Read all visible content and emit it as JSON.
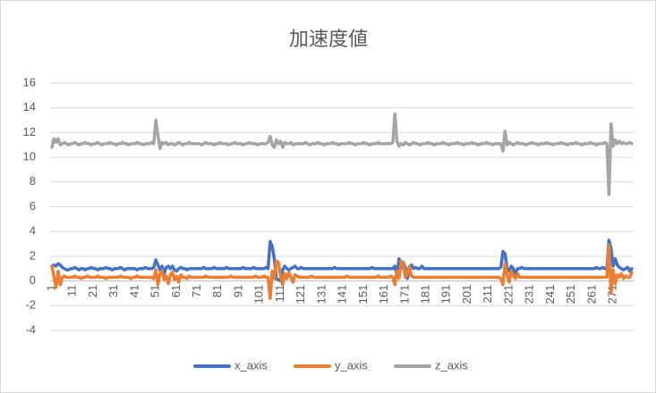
{
  "chart_data": {
    "type": "line",
    "title": "加速度値",
    "categories": [
      1,
      null,
      null,
      null,
      null,
      null,
      null,
      null,
      null,
      null,
      11,
      null,
      null,
      null,
      null,
      null,
      null,
      null,
      null,
      null,
      21,
      null,
      null,
      null,
      null,
      null,
      null,
      null,
      null,
      null,
      31,
      null,
      null,
      null,
      null,
      null,
      null,
      null,
      null,
      null,
      41,
      null,
      null,
      null,
      null,
      null,
      null,
      null,
      null,
      null,
      51,
      null,
      null,
      null,
      null,
      null,
      null,
      null,
      null,
      null,
      61,
      null,
      null,
      null,
      null,
      null,
      null,
      null,
      null,
      null,
      71,
      null,
      null,
      null,
      null,
      null,
      null,
      null,
      null,
      null,
      81,
      null,
      null,
      null,
      null,
      null,
      null,
      null,
      null,
      null,
      91,
      null,
      null,
      null,
      null,
      null,
      null,
      null,
      null,
      null,
      101,
      null,
      null,
      null,
      null,
      null,
      null,
      null,
      null,
      null,
      111,
      null,
      null,
      null,
      null,
      null,
      null,
      null,
      null,
      null,
      121,
      null,
      null,
      null,
      null,
      null,
      null,
      null,
      null,
      null,
      131,
      null,
      null,
      null,
      null,
      null,
      null,
      null,
      null,
      null,
      141,
      null,
      null,
      null,
      null,
      null,
      null,
      null,
      null,
      null,
      151,
      null,
      null,
      null,
      null,
      null,
      null,
      null,
      null,
      null,
      161,
      null,
      null,
      null,
      null,
      null,
      null,
      null,
      null,
      null,
      171,
      null,
      null,
      null,
      null,
      null,
      null,
      null,
      null,
      null,
      181,
      null,
      null,
      null,
      null,
      null,
      null,
      null,
      null,
      null,
      191,
      null,
      null,
      null,
      null,
      null,
      null,
      null,
      null,
      null,
      201,
      null,
      null,
      null,
      null,
      null,
      null,
      null,
      null,
      null,
      211,
      null,
      null,
      null,
      null,
      null,
      null,
      null,
      null,
      null,
      221,
      null,
      null,
      null,
      null,
      null,
      null,
      null,
      null,
      null,
      231,
      null,
      null,
      null,
      null,
      null,
      null,
      null,
      null,
      null,
      241,
      null,
      null,
      null,
      null,
      null,
      null,
      null,
      null,
      null,
      251,
      null,
      null,
      null,
      null,
      null,
      null,
      null,
      null,
      null,
      261,
      null,
      null,
      null,
      null,
      null,
      null,
      null,
      null,
      null,
      271,
      null,
      null,
      null,
      null,
      null,
      null,
      null,
      null,
      null
    ],
    "series": [
      {
        "name": "x_axis",
        "color": "#4472c4",
        "values": [
          1.2,
          1.3,
          1.2,
          1.4,
          1.3,
          1.1,
          1.0,
          0.9,
          0.9,
          1.0,
          1.0,
          1.1,
          1.0,
          0.9,
          1.0,
          1.0,
          0.9,
          1.0,
          1.0,
          1.1,
          1.0,
          1.0,
          0.9,
          1.0,
          1.0,
          1.0,
          1.1,
          1.0,
          1.0,
          0.9,
          1.0,
          1.0,
          1.0,
          1.1,
          1.0,
          0.9,
          1.0,
          1.0,
          1.0,
          1.0,
          1.0,
          0.9,
          1.0,
          1.0,
          1.0,
          1.1,
          1.0,
          1.0,
          1.0,
          1.1,
          1.7,
          1.3,
          0.9,
          1.2,
          0.6,
          1.1,
          1.2,
          1.0,
          1.2,
          0.9,
          0.8,
          1.0,
          1.1,
          1.0,
          1.0,
          0.9,
          1.0,
          1.0,
          1.0,
          1.0,
          1.0,
          1.0,
          1.0,
          1.1,
          1.0,
          1.0,
          1.0,
          1.0,
          1.1,
          1.0,
          1.0,
          1.0,
          1.0,
          1.0,
          1.1,
          1.0,
          1.0,
          1.0,
          1.0,
          1.0,
          1.0,
          1.0,
          1.1,
          1.0,
          1.0,
          1.0,
          1.0,
          1.1,
          1.0,
          1.0,
          1.0,
          1.0,
          1.0,
          1.1,
          1.0,
          3.2,
          2.8,
          1.8,
          0.2,
          0.1,
          0.0,
          0.9,
          1.2,
          1.0,
          0.9,
          1.0,
          1.1,
          1.2,
          1.0,
          1.0,
          1.1,
          1.0,
          1.0,
          1.0,
          1.0,
          1.0,
          1.0,
          1.0,
          1.0,
          1.0,
          1.0,
          1.0,
          1.0,
          1.0,
          1.0,
          1.0,
          1.1,
          1.0,
          1.0,
          1.0,
          1.0,
          1.0,
          1.0,
          1.0,
          1.0,
          1.0,
          1.0,
          1.0,
          1.0,
          1.0,
          1.0,
          1.0,
          1.0,
          1.0,
          1.1,
          1.0,
          1.0,
          1.0,
          1.0,
          1.0,
          1.0,
          1.0,
          1.0,
          1.0,
          1.0,
          1.2,
          0.5,
          1.8,
          1.0,
          1.5,
          1.1,
          0.2,
          1.0,
          1.3,
          1.0,
          1.1,
          1.0,
          1.0,
          1.2,
          1.0,
          1.0,
          1.0,
          1.0,
          1.0,
          1.0,
          1.0,
          1.0,
          1.0,
          1.0,
          1.0,
          1.0,
          1.0,
          1.0,
          1.0,
          1.0,
          1.0,
          1.0,
          1.0,
          1.0,
          1.0,
          1.0,
          1.0,
          1.0,
          1.0,
          1.0,
          1.0,
          1.0,
          1.0,
          1.0,
          1.0,
          1.0,
          1.0,
          1.0,
          1.0,
          1.0,
          1.0,
          1.1,
          2.4,
          2.2,
          1.0,
          0.8,
          1.2,
          1.0,
          0.6,
          1.0,
          1.0,
          1.1,
          1.0,
          1.0,
          1.0,
          1.0,
          1.0,
          1.0,
          1.0,
          1.0,
          1.0,
          1.0,
          1.0,
          1.0,
          1.0,
          1.0,
          1.0,
          1.0,
          1.0,
          1.0,
          1.0,
          1.0,
          1.0,
          1.0,
          1.0,
          1.0,
          1.0,
          1.0,
          1.0,
          1.0,
          1.0,
          1.0,
          1.0,
          1.0,
          1.0,
          1.0,
          1.0,
          1.1,
          1.0,
          1.0,
          1.1,
          1.0,
          1.0,
          3.3,
          2.6,
          1.2,
          1.8,
          1.3,
          1.1,
          1.0,
          0.9,
          1.0,
          1.1,
          0.8,
          1.0
        ]
      },
      {
        "name": "y_axis",
        "color": "#ed7d31",
        "values": [
          1.2,
          0.3,
          -0.5,
          0.8,
          -0.3,
          0.3,
          0.4,
          0.3,
          0.3,
          0.3,
          0.3,
          0.4,
          0.3,
          0.3,
          0.2,
          0.3,
          0.3,
          0.4,
          0.3,
          0.3,
          0.3,
          0.3,
          0.4,
          0.3,
          0.3,
          0.3,
          0.2,
          0.3,
          0.3,
          0.3,
          0.3,
          0.3,
          0.3,
          0.4,
          0.3,
          0.3,
          0.3,
          0.3,
          0.2,
          0.3,
          0.3,
          0.4,
          0.3,
          0.3,
          0.3,
          0.3,
          0.3,
          0.3,
          0.3,
          0.2,
          0.9,
          -0.3,
          0.6,
          0.8,
          0.1,
          0.4,
          -0.2,
          0.5,
          0.7,
          0.1,
          0.4,
          -0.1,
          0.5,
          0.3,
          0.3,
          0.2,
          0.4,
          0.3,
          0.3,
          0.3,
          0.3,
          0.3,
          0.3,
          0.3,
          0.4,
          0.3,
          0.3,
          0.3,
          0.3,
          0.3,
          0.3,
          0.3,
          0.3,
          0.3,
          0.3,
          0.3,
          0.4,
          0.3,
          0.3,
          0.3,
          0.3,
          0.3,
          0.3,
          0.3,
          0.3,
          0.3,
          0.3,
          0.3,
          0.4,
          0.3,
          0.3,
          0.3,
          0.4,
          0.3,
          0.3,
          -1.4,
          0.8,
          0.2,
          1.6,
          1.5,
          0.4,
          -0.3,
          0.6,
          0.2,
          0.7,
          0.3,
          -0.1,
          0.5,
          0.4,
          0.3,
          0.3,
          0.3,
          0.3,
          0.3,
          0.3,
          0.4,
          0.3,
          0.3,
          0.3,
          0.3,
          0.3,
          0.3,
          0.3,
          0.3,
          0.3,
          0.3,
          0.3,
          0.3,
          0.3,
          0.3,
          0.3,
          0.3,
          0.4,
          0.3,
          0.3,
          0.3,
          0.3,
          0.3,
          0.3,
          0.3,
          0.3,
          0.3,
          0.3,
          0.3,
          0.3,
          0.3,
          0.3,
          0.4,
          0.3,
          0.3,
          0.3,
          0.3,
          0.3,
          0.4,
          0.3,
          -0.3,
          0.8,
          0.2,
          1.6,
          1.5,
          0.3,
          0.6,
          1.2,
          0.4,
          0.3,
          0.3,
          0.3,
          0.3,
          0.3,
          0.3,
          0.3,
          0.3,
          0.3,
          0.3,
          0.3,
          0.3,
          0.3,
          0.3,
          0.3,
          0.3,
          0.3,
          0.3,
          0.3,
          0.3,
          0.3,
          0.3,
          0.3,
          0.3,
          0.3,
          0.3,
          0.3,
          0.3,
          0.3,
          0.3,
          0.3,
          0.3,
          0.3,
          0.3,
          0.3,
          0.3,
          0.3,
          0.3,
          0.3,
          0.3,
          0.3,
          0.3,
          0.2,
          -0.3,
          1.4,
          0.5,
          -0.1,
          0.8,
          0.4,
          0.2,
          0.6,
          0.3,
          0.3,
          0.3,
          0.3,
          0.3,
          0.3,
          0.3,
          0.3,
          0.3,
          0.3,
          0.3,
          0.3,
          0.3,
          0.3,
          0.3,
          0.3,
          0.3,
          0.3,
          0.3,
          0.3,
          0.3,
          0.3,
          0.3,
          0.3,
          0.3,
          0.3,
          0.3,
          0.3,
          0.3,
          0.3,
          0.3,
          0.3,
          0.3,
          0.3,
          0.3,
          0.3,
          0.3,
          0.3,
          0.3,
          0.3,
          0.3,
          0.3,
          0.3,
          2.9,
          -1.0,
          0.9,
          -0.2,
          0.5,
          0.3,
          0.6,
          0.2,
          0.4,
          0.3,
          0.3,
          0.7
        ]
      },
      {
        "name": "z_axis",
        "color": "#a5a5a5",
        "values": [
          10.8,
          11.5,
          11.2,
          11.5,
          11.0,
          11.1,
          11.2,
          11.1,
          11.0,
          11.1,
          11.1,
          11.2,
          11.1,
          11.0,
          11.1,
          11.1,
          11.2,
          11.1,
          11.1,
          11.0,
          11.1,
          11.1,
          11.2,
          11.1,
          11.0,
          11.1,
          11.1,
          11.1,
          11.2,
          11.1,
          11.1,
          11.0,
          11.1,
          11.1,
          11.2,
          11.1,
          11.1,
          11.0,
          11.1,
          11.1,
          11.1,
          11.2,
          11.1,
          11.1,
          11.0,
          11.1,
          11.1,
          11.1,
          11.2,
          11.1,
          13.0,
          11.8,
          10.7,
          11.2,
          11.1,
          11.2,
          11.0,
          11.1,
          11.1,
          11.0,
          11.1,
          11.2,
          11.1,
          11.0,
          11.1,
          11.1,
          11.2,
          11.1,
          11.1,
          11.1,
          11.1,
          11.1,
          11.0,
          11.1,
          11.2,
          11.1,
          11.1,
          11.1,
          11.0,
          11.1,
          11.1,
          11.2,
          11.1,
          11.1,
          11.1,
          11.0,
          11.1,
          11.1,
          11.2,
          11.1,
          11.1,
          11.1,
          11.0,
          11.1,
          11.1,
          11.2,
          11.1,
          11.1,
          11.1,
          11.0,
          11.1,
          11.1,
          11.1,
          11.1,
          11.2,
          11.7,
          11.0,
          10.8,
          11.4,
          11.1,
          11.3,
          10.8,
          11.2,
          11.1,
          11.1,
          11.2,
          11.0,
          11.1,
          11.1,
          11.1,
          11.1,
          11.1,
          11.2,
          11.1,
          11.0,
          11.1,
          11.1,
          11.1,
          11.2,
          11.1,
          11.1,
          11.0,
          11.1,
          11.1,
          11.1,
          11.2,
          11.1,
          11.1,
          11.0,
          11.1,
          11.1,
          11.1,
          11.1,
          11.2,
          11.1,
          11.1,
          11.0,
          11.1,
          11.1,
          11.1,
          11.2,
          11.1,
          11.1,
          11.0,
          11.1,
          11.1,
          11.1,
          11.2,
          11.1,
          11.1,
          11.1,
          11.1,
          11.1,
          11.1,
          11.2,
          13.5,
          11.3,
          10.9,
          11.1,
          11.0,
          11.2,
          11.1,
          11.0,
          11.1,
          11.2,
          11.1,
          11.1,
          11.0,
          11.1,
          11.1,
          11.1,
          11.2,
          11.1,
          11.1,
          11.0,
          11.1,
          11.1,
          11.1,
          11.2,
          11.1,
          11.1,
          11.0,
          11.1,
          11.1,
          11.1,
          11.2,
          11.1,
          11.1,
          11.0,
          11.1,
          11.1,
          11.1,
          11.2,
          11.1,
          11.1,
          11.0,
          11.1,
          11.1,
          11.1,
          11.2,
          11.1,
          11.1,
          11.0,
          11.1,
          11.1,
          11.1,
          11.1,
          10.5,
          12.1,
          11.0,
          11.2,
          11.1,
          11.0,
          11.1,
          11.2,
          11.1,
          11.1,
          11.1,
          11.0,
          11.1,
          11.1,
          11.2,
          11.1,
          11.1,
          11.0,
          11.1,
          11.1,
          11.1,
          11.2,
          11.1,
          11.1,
          11.0,
          11.1,
          11.1,
          11.1,
          11.2,
          11.1,
          11.1,
          11.0,
          11.1,
          11.1,
          11.1,
          11.2,
          11.1,
          11.1,
          11.0,
          11.1,
          11.1,
          11.1,
          11.2,
          11.1,
          11.1,
          11.0,
          11.1,
          11.1,
          11.1,
          11.2,
          11.1,
          7.0,
          12.7,
          10.9,
          11.4,
          11.1,
          11.3,
          11.1,
          11.2,
          11.1,
          11.1,
          11.2,
          11.1
        ]
      }
    ],
    "ylim": [
      -4,
      16
    ],
    "yticks": [
      -4,
      -2,
      0,
      2,
      4,
      6,
      8,
      10,
      12,
      14,
      16
    ],
    "grid": true,
    "legend": "bottom"
  }
}
